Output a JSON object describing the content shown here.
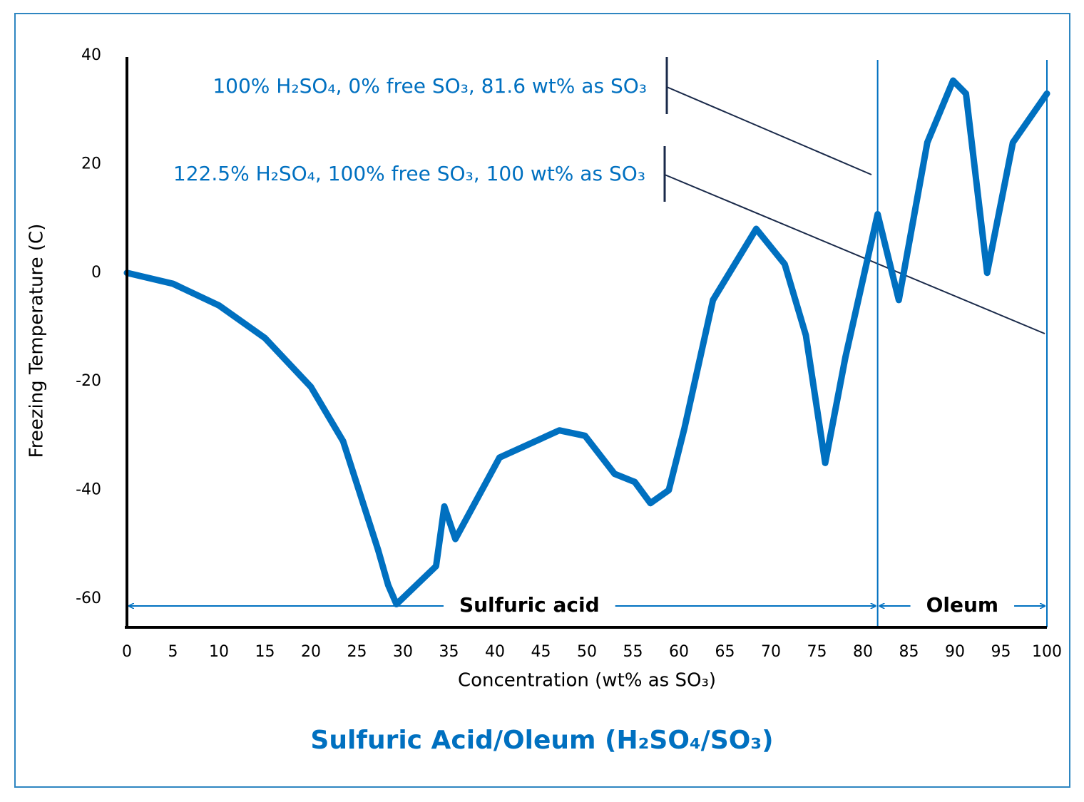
{
  "chart_data": {
    "type": "line",
    "title": "Sulfuric Acid/Oleum (H₂SO₄/SO₃)",
    "xlabel": "Concentration (wt% as SO₃)",
    "ylabel": "Freezing Temperature (C)",
    "x": [
      0,
      5,
      10,
      15,
      20,
      23.5,
      27.3,
      28.4,
      29.3,
      33.6,
      34.5,
      35.7,
      40.5,
      47,
      49.8,
      53,
      55.2,
      56.9,
      58.9,
      60.6,
      63.7,
      68.4,
      71.5,
      73.8,
      75.9,
      78.1,
      81.6,
      83.9,
      87,
      89.8,
      91.2,
      93.5,
      96.3,
      100
    ],
    "values": [
      0,
      -2,
      -6,
      -12,
      -21,
      -31,
      -51,
      -57.5,
      -61,
      -54,
      -43,
      -49,
      -34,
      -29,
      -30,
      -37,
      -38.5,
      -42.4,
      -40,
      -28.6,
      -5,
      8.1,
      1.6,
      -11.5,
      -35,
      -15.5,
      10.8,
      -5,
      24,
      35.4,
      33,
      0,
      24,
      33
    ],
    "color": "#0070c0",
    "xlim": [
      0,
      100
    ],
    "xticks": [
      0,
      5,
      10,
      15,
      20,
      25,
      30,
      35,
      40,
      45,
      50,
      55,
      60,
      65,
      70,
      75,
      80,
      85,
      90,
      95,
      100
    ],
    "ylim": [
      -65,
      40
    ],
    "yticks": [
      -60,
      -40,
      -20,
      0,
      20,
      40
    ],
    "grid": false,
    "regions": [
      {
        "label": "Sulfuric acid",
        "from": 0,
        "to": 81.6
      },
      {
        "label": "Oleum",
        "from": 81.6,
        "to": 100
      }
    ],
    "annotations": [
      "100% H₂SO₄, 0% free SO₃, 81.6 wt% as SO₃",
      "122.5% H₂SO₄, 100% free SO₃, 100 wt% as SO₃"
    ]
  }
}
